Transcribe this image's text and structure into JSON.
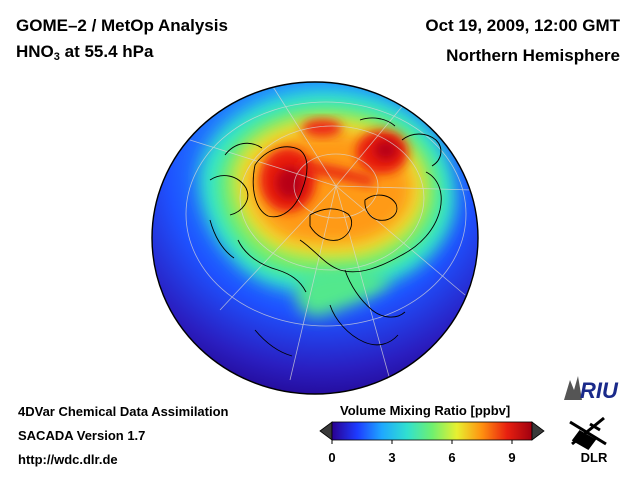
{
  "header": {
    "title_main": "GOME–2 / MetOp Analysis",
    "species_prefix": "HNO",
    "species_sub": "3",
    "species_suffix": " at 55.4 hPa",
    "datetime": "Oct 19, 2009, 12:00 GMT",
    "region": "Northern Hemisphere"
  },
  "footer": {
    "line1": "4DVar Chemical Data Assimilation",
    "line2": "SACADA Version 1.7",
    "line3": "http://wdc.dlr.de"
  },
  "colorbar": {
    "title": "Volume Mixing Ratio [ppbv]",
    "min": 0,
    "max": 10,
    "ticks": [
      "0",
      "3",
      "6",
      "9"
    ],
    "tick_values": [
      0,
      3,
      6,
      9
    ],
    "colors": [
      "#2a0090",
      "#1d3bff",
      "#1fa8ff",
      "#30e0d0",
      "#6ef070",
      "#e8f030",
      "#ff9010",
      "#e82010",
      "#a00010"
    ]
  },
  "logos": {
    "riu": "RIU",
    "dlr": "DLR"
  }
}
